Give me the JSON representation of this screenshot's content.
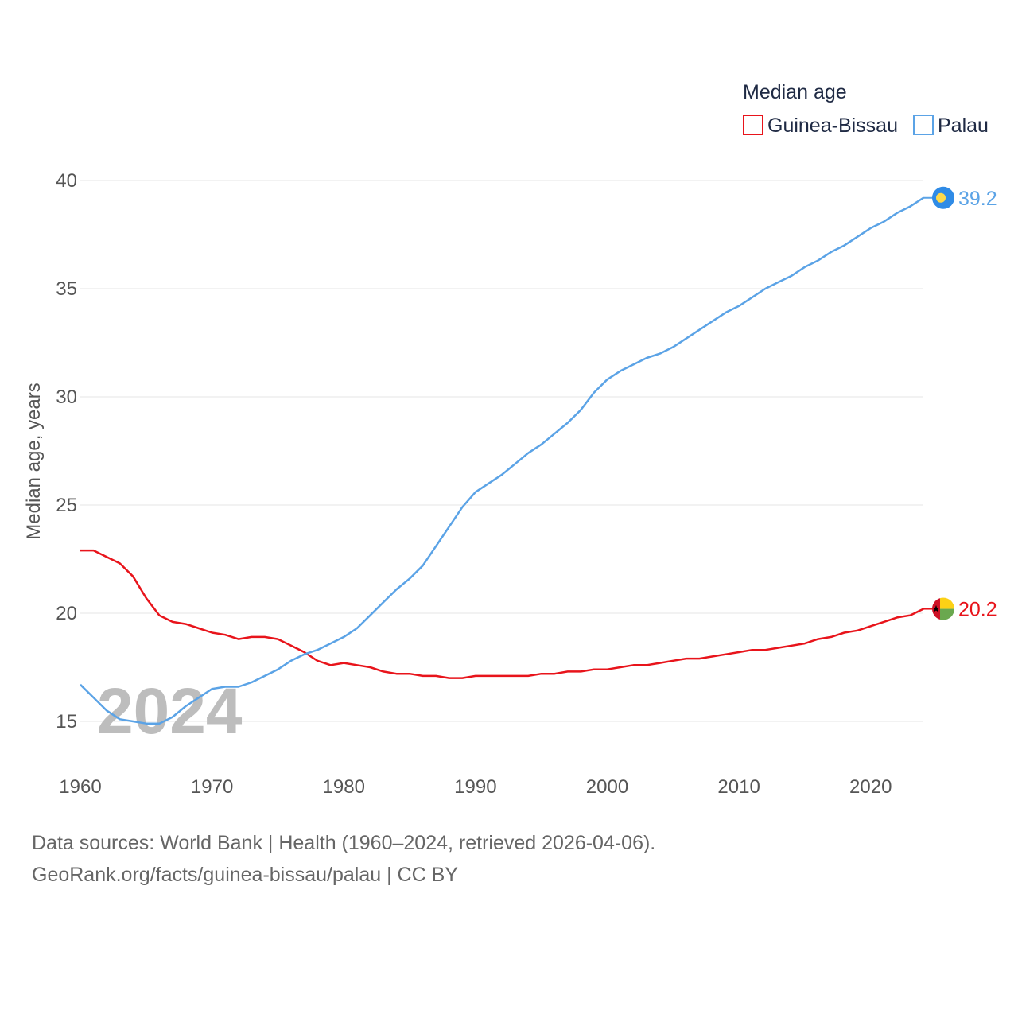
{
  "chart_data": {
    "type": "line",
    "legend_title": "Median age",
    "ylabel": "Median age, years",
    "xlabel": "",
    "ylim": [
      13,
      40
    ],
    "xlim": [
      1960,
      2024
    ],
    "y_ticks": [
      "15",
      "20",
      "25",
      "30",
      "35",
      "40"
    ],
    "x_ticks": [
      "1960",
      "1970",
      "1980",
      "1990",
      "2000",
      "2010",
      "2020"
    ],
    "year_label": "2024",
    "legend_position": "top-right",
    "series": [
      {
        "name": "Guinea-Bissau",
        "color": "#e8141b",
        "end_label": "20.2",
        "flag_icon": "guinea-bissau-flag-icon",
        "x": [
          1960,
          1961,
          1962,
          1963,
          1964,
          1965,
          1966,
          1967,
          1968,
          1969,
          1970,
          1971,
          1972,
          1973,
          1974,
          1975,
          1976,
          1977,
          1978,
          1979,
          1980,
          1981,
          1982,
          1983,
          1984,
          1985,
          1986,
          1987,
          1988,
          1989,
          1990,
          1991,
          1992,
          1993,
          1994,
          1995,
          1996,
          1997,
          1998,
          1999,
          2000,
          2001,
          2002,
          2003,
          2004,
          2005,
          2006,
          2007,
          2008,
          2009,
          2010,
          2011,
          2012,
          2013,
          2014,
          2015,
          2016,
          2017,
          2018,
          2019,
          2020,
          2021,
          2022,
          2023,
          2024
        ],
        "values": [
          22.9,
          22.9,
          22.6,
          22.3,
          21.7,
          20.7,
          19.9,
          19.6,
          19.5,
          19.3,
          19.1,
          19.0,
          18.8,
          18.9,
          18.9,
          18.8,
          18.5,
          18.2,
          17.8,
          17.6,
          17.7,
          17.6,
          17.5,
          17.3,
          17.2,
          17.2,
          17.1,
          17.1,
          17.0,
          17.0,
          17.1,
          17.1,
          17.1,
          17.1,
          17.1,
          17.2,
          17.2,
          17.3,
          17.3,
          17.4,
          17.4,
          17.5,
          17.6,
          17.6,
          17.7,
          17.8,
          17.9,
          17.9,
          18.0,
          18.1,
          18.2,
          18.3,
          18.3,
          18.4,
          18.5,
          18.6,
          18.8,
          18.9,
          19.1,
          19.2,
          19.4,
          19.6,
          19.8,
          19.9,
          20.2
        ]
      },
      {
        "name": "Palau",
        "color": "#5ba3e6",
        "end_label": "39.2",
        "flag_icon": "palau-flag-icon",
        "x": [
          1960,
          1961,
          1962,
          1963,
          1964,
          1965,
          1966,
          1967,
          1968,
          1969,
          1970,
          1971,
          1972,
          1973,
          1974,
          1975,
          1976,
          1977,
          1978,
          1979,
          1980,
          1981,
          1982,
          1983,
          1984,
          1985,
          1986,
          1987,
          1988,
          1989,
          1990,
          1991,
          1992,
          1993,
          1994,
          1995,
          1996,
          1997,
          1998,
          1999,
          2000,
          2001,
          2002,
          2003,
          2004,
          2005,
          2006,
          2007,
          2008,
          2009,
          2010,
          2011,
          2012,
          2013,
          2014,
          2015,
          2016,
          2017,
          2018,
          2019,
          2020,
          2021,
          2022,
          2023,
          2024
        ],
        "values": [
          16.7,
          16.1,
          15.5,
          15.1,
          15.0,
          14.9,
          14.9,
          15.2,
          15.7,
          16.1,
          16.5,
          16.6,
          16.6,
          16.8,
          17.1,
          17.4,
          17.8,
          18.1,
          18.3,
          18.6,
          18.9,
          19.3,
          19.9,
          20.5,
          21.1,
          21.6,
          22.2,
          23.1,
          24.0,
          24.9,
          25.6,
          26.0,
          26.4,
          26.9,
          27.4,
          27.8,
          28.3,
          28.8,
          29.4,
          30.2,
          30.8,
          31.2,
          31.5,
          31.8,
          32.0,
          32.3,
          32.7,
          33.1,
          33.5,
          33.9,
          34.2,
          34.6,
          35.0,
          35.3,
          35.6,
          36.0,
          36.3,
          36.7,
          37.0,
          37.4,
          37.8,
          38.1,
          38.5,
          38.8,
          39.2
        ]
      }
    ]
  },
  "sources": {
    "line1": "Data sources: World Bank | Health (1960–2024, retrieved 2026-04-06).",
    "line2": "GeoRank.org/facts/guinea-bissau/palau | CC BY"
  }
}
